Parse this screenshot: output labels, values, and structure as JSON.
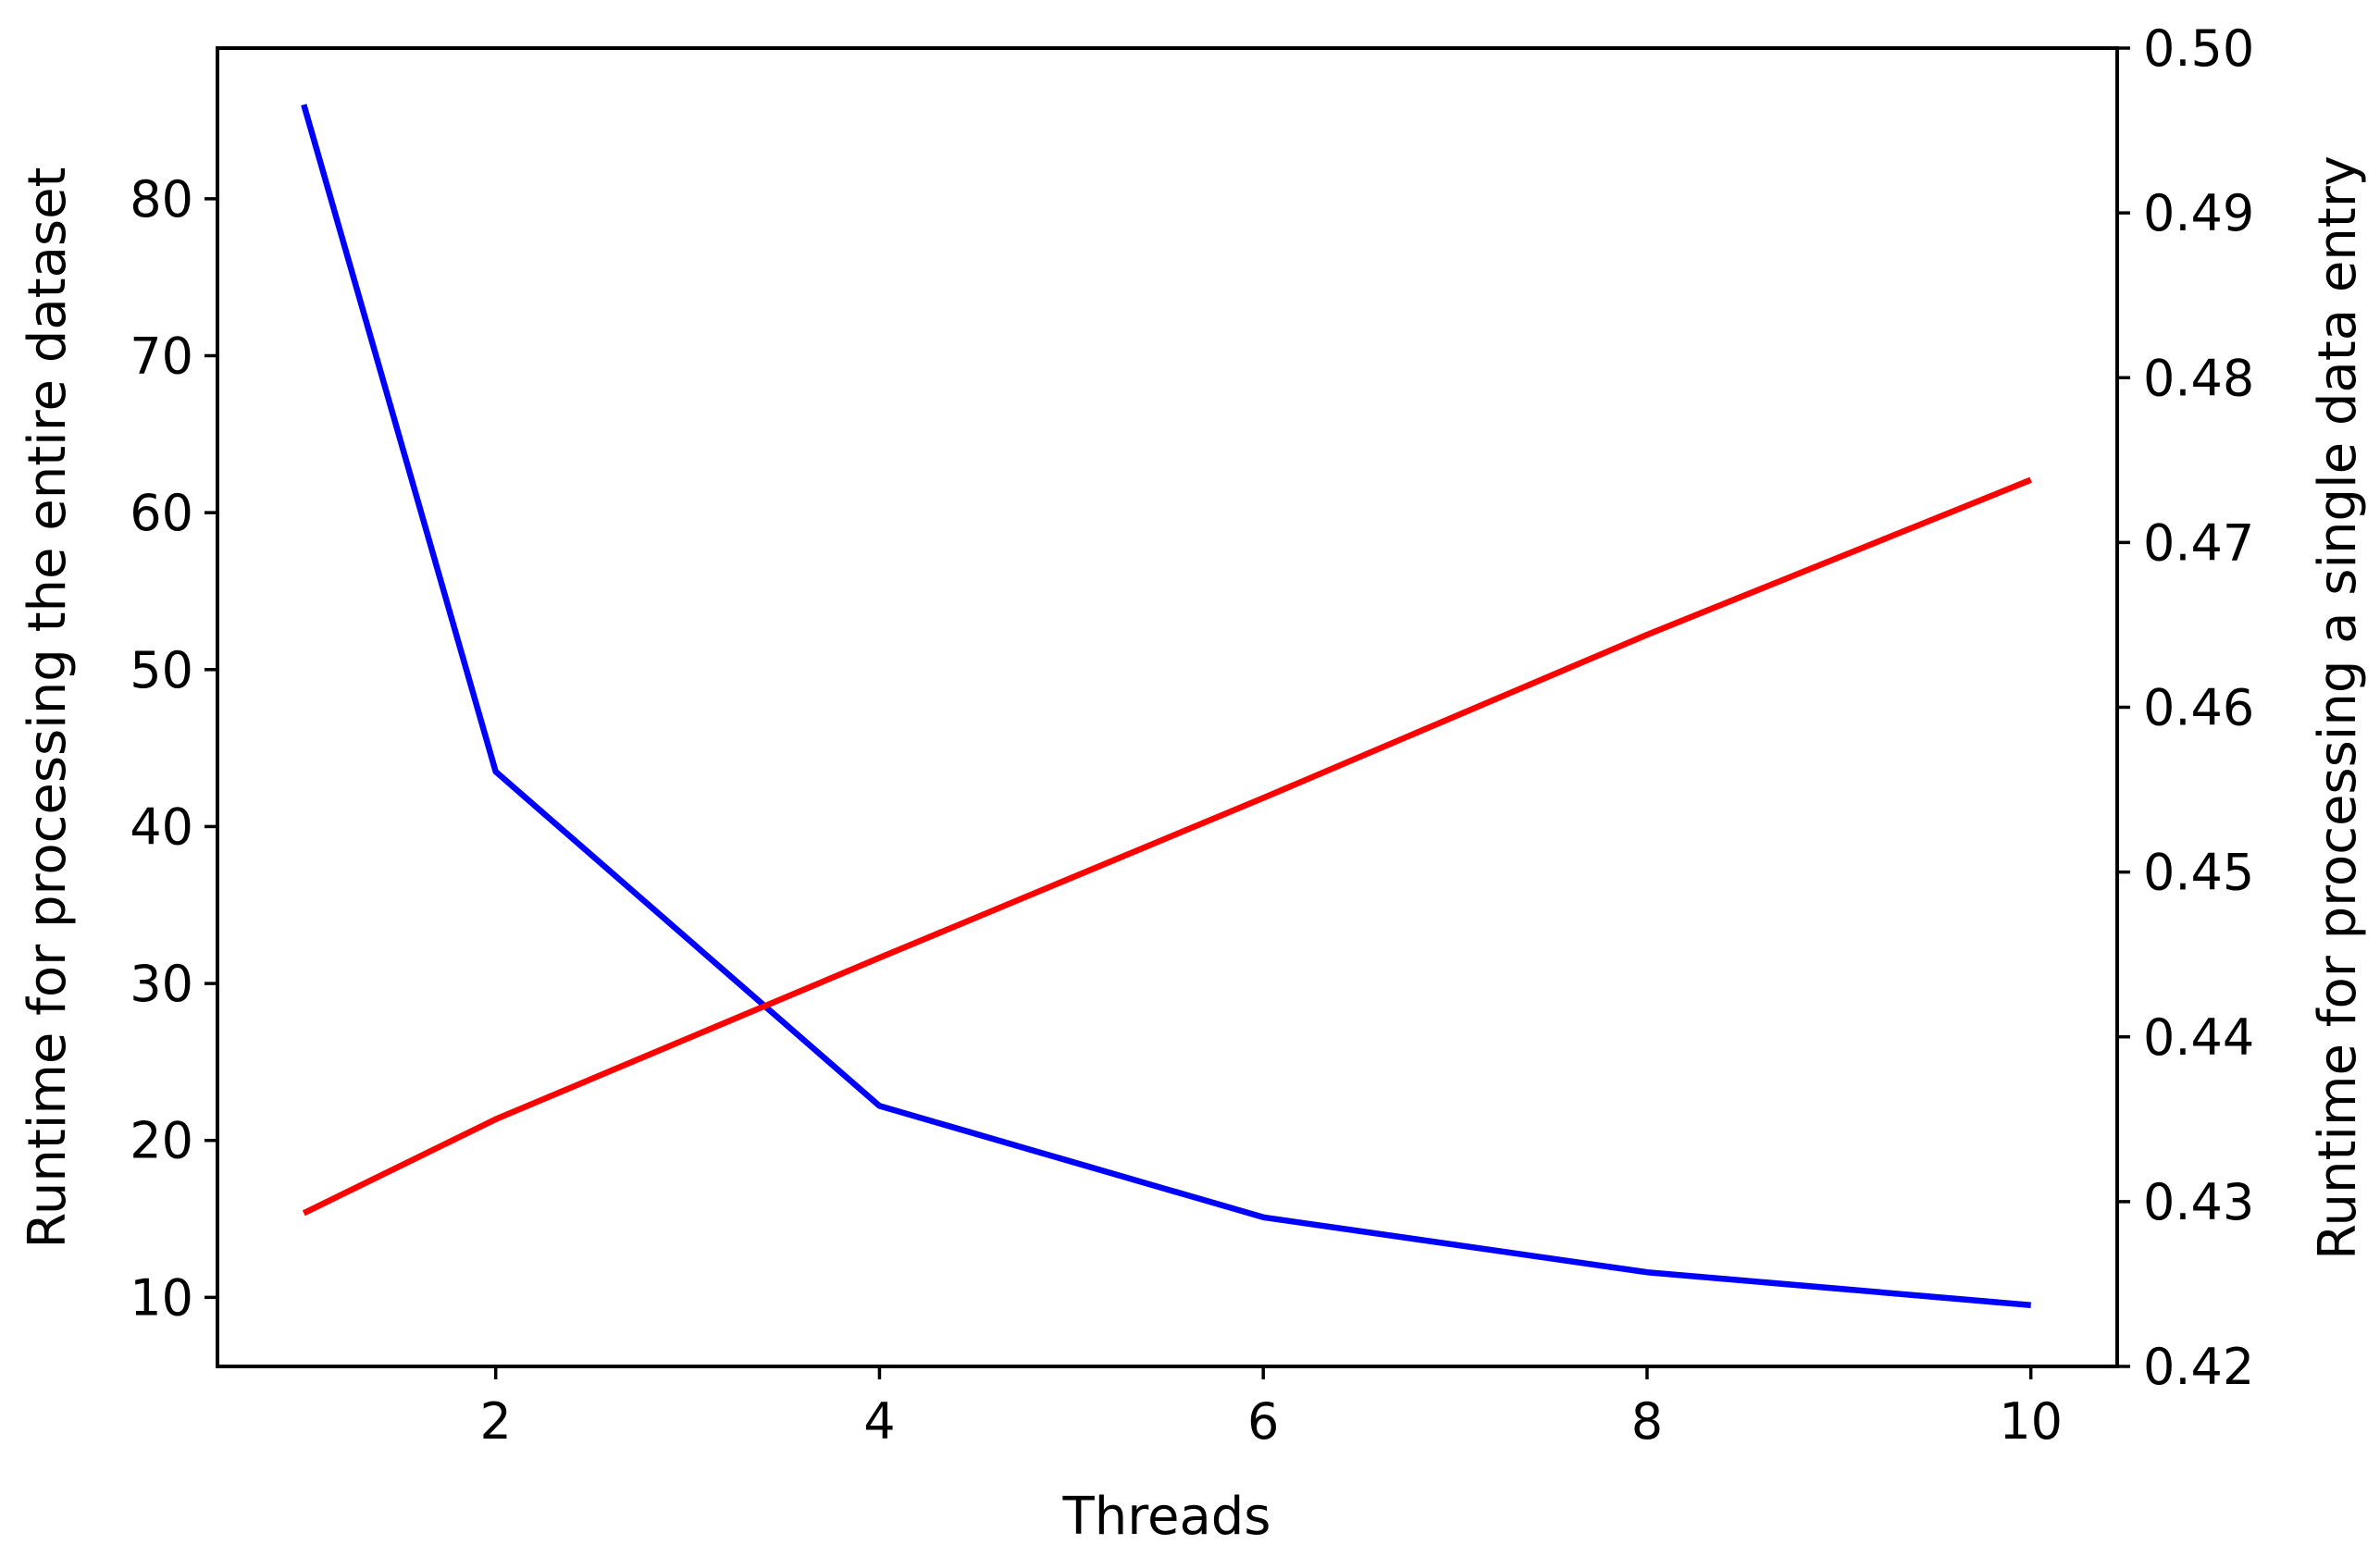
{
  "chart_data": {
    "type": "line",
    "title": "",
    "xlabel": "Threads",
    "ylabel": "Runtime for processing the entire dataset",
    "ylabel_right": "Runtime for processing a single data entry",
    "xlim": [
      0.55,
      10.45
    ],
    "ylim": [
      5.6,
      89.6
    ],
    "ylim_right": [
      0.42,
      0.5
    ],
    "xticks": [
      2,
      4,
      6,
      8,
      10
    ],
    "yticks": [
      10,
      20,
      30,
      40,
      50,
      60,
      70,
      80
    ],
    "yticks_right": [
      "0.42",
      "0.43",
      "0.44",
      "0.45",
      "0.46",
      "0.47",
      "0.48",
      "0.49",
      "0.50"
    ],
    "grid": false,
    "x": [
      1,
      2,
      4,
      6,
      8,
      10
    ],
    "series": [
      {
        "axis": "left",
        "color": "#0000ff",
        "values": [
          86.0,
          43.5,
          22.2,
          15.1,
          11.6,
          9.5
        ]
      },
      {
        "axis": "right",
        "color": "#ff0000",
        "values": [
          0.4293,
          0.435,
          0.4448,
          0.4545,
          0.4644,
          0.4738
        ]
      }
    ]
  }
}
